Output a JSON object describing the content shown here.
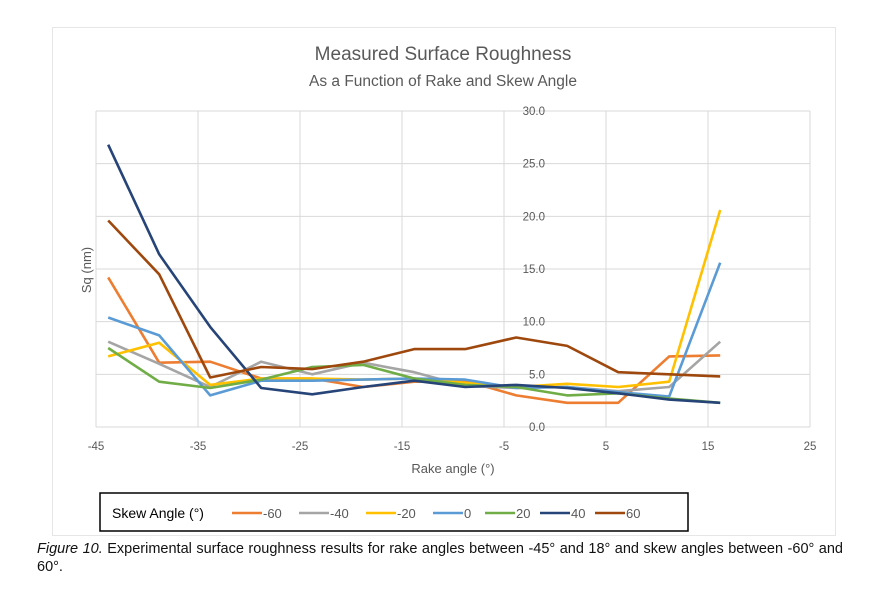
{
  "chart_data": {
    "type": "line",
    "title": "Measured Surface Roughness",
    "subtitle": "As a Function of Rake and Skew Angle",
    "xlabel": "Rake angle (°)",
    "ylabel": "Sq (nm)",
    "xlim": [
      -45,
      25
    ],
    "ylim": [
      0,
      30
    ],
    "xticks": [
      -45,
      -35,
      -25,
      -15,
      -5,
      5,
      15,
      25
    ],
    "yticks": [
      "0.0",
      "5.0",
      "10.0",
      "15.0",
      "20.0",
      "25.0",
      "30.0"
    ],
    "grid": true,
    "legend_title": "Skew Angle (°)",
    "legend_placement": "bottom",
    "x": [
      -43.8,
      -38.8,
      -33.8,
      -28.8,
      -23.8,
      -18.8,
      -13.8,
      -8.8,
      -3.8,
      1.2,
      6.2,
      11.2,
      16.2
    ],
    "series": [
      {
        "name": "-60",
        "color": "#ed7d31",
        "values": [
          14.2,
          6.1,
          6.2,
          4.6,
          4.6,
          3.8,
          4.3,
          4.4,
          3.0,
          2.3,
          2.3,
          6.7,
          6.8
        ]
      },
      {
        "name": "-40",
        "color": "#a5a5a5",
        "values": [
          8.1,
          6.0,
          3.8,
          6.2,
          5.0,
          6.1,
          5.2,
          3.9,
          3.7,
          3.8,
          3.4,
          3.8,
          8.1
        ]
      },
      {
        "name": "-20",
        "color": "#ffc000",
        "values": [
          6.7,
          8.0,
          4.0,
          4.6,
          4.6,
          4.5,
          4.6,
          4.2,
          3.8,
          4.1,
          3.8,
          4.3,
          20.6
        ]
      },
      {
        "name": "0",
        "color": "#5b9bd5",
        "values": [
          10.4,
          8.7,
          3.0,
          4.4,
          4.4,
          4.5,
          4.6,
          4.5,
          3.7,
          3.8,
          3.3,
          2.9,
          15.6
        ]
      },
      {
        "name": "20",
        "color": "#70ad47",
        "values": [
          7.5,
          4.3,
          3.7,
          4.5,
          5.7,
          5.9,
          4.6,
          4.0,
          3.8,
          3.0,
          3.2,
          2.7,
          2.3
        ]
      },
      {
        "name": "40",
        "color": "#264478",
        "values": [
          26.8,
          16.4,
          9.5,
          3.7,
          3.1,
          3.8,
          4.4,
          3.8,
          4.0,
          3.7,
          3.2,
          2.6,
          2.3
        ]
      },
      {
        "name": "60",
        "color": "#9e480e",
        "values": [
          19.6,
          14.5,
          4.7,
          5.7,
          5.5,
          6.2,
          7.4,
          7.4,
          8.5,
          7.7,
          5.2,
          5.0,
          4.8
        ]
      }
    ]
  },
  "caption": {
    "label": "Figure 10.",
    "text": " Experimental surface roughness results for rake angles between -45° and 18° and skew angles between -60° and 60°."
  }
}
